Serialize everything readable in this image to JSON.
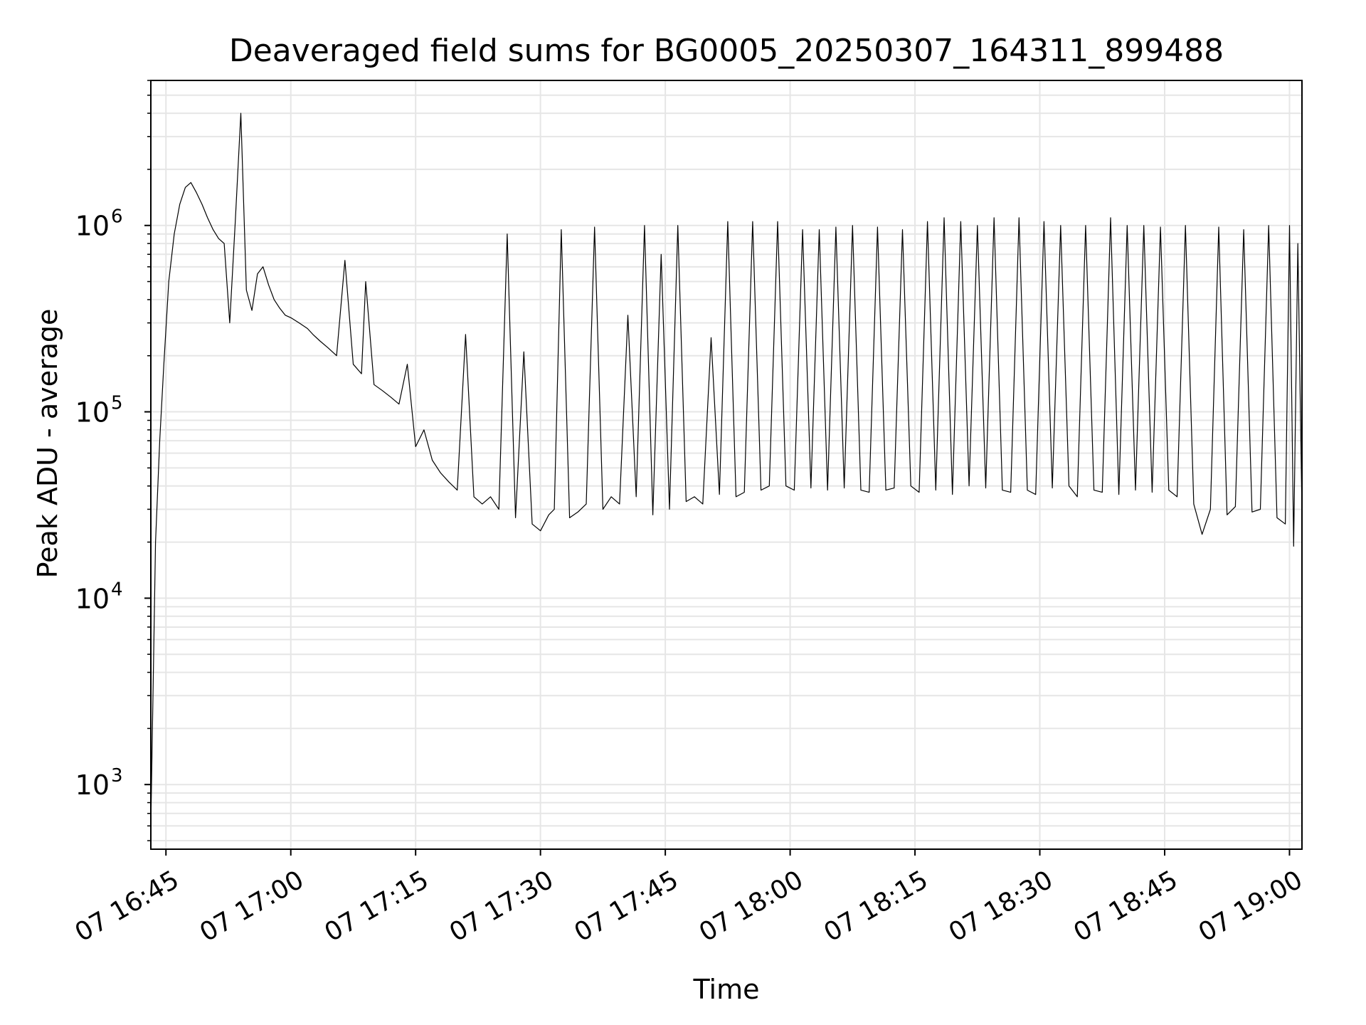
{
  "chart_data": {
    "type": "line",
    "title": "Deaveraged field sums for BG0005_20250307_164311_899488",
    "xlabel": "Time",
    "ylabel": "Peak ADU - average",
    "yscale": "log",
    "ylim": [
      450,
      6000000
    ],
    "xlim": [
      "2025-03-07 16:43:11",
      "2025-03-07 19:01:30"
    ],
    "grid": true,
    "line_color": "#000000",
    "grid_color": "#e6e6e6",
    "x_ticks": [
      {
        "t": "2025-03-07 16:45",
        "label": "07 16:45"
      },
      {
        "t": "2025-03-07 17:00",
        "label": "07 17:00"
      },
      {
        "t": "2025-03-07 17:15",
        "label": "07 17:15"
      },
      {
        "t": "2025-03-07 17:30",
        "label": "07 17:30"
      },
      {
        "t": "2025-03-07 17:45",
        "label": "07 17:45"
      },
      {
        "t": "2025-03-07 18:00",
        "label": "07 18:00"
      },
      {
        "t": "2025-03-07 18:15",
        "label": "07 18:15"
      },
      {
        "t": "2025-03-07 18:30",
        "label": "07 18:30"
      },
      {
        "t": "2025-03-07 18:45",
        "label": "07 18:45"
      },
      {
        "t": "2025-03-07 19:00",
        "label": "07 19:00"
      }
    ],
    "y_ticks": [
      {
        "value": 1000,
        "exp": "3"
      },
      {
        "value": 10000,
        "exp": "4"
      },
      {
        "value": 100000,
        "exp": "5"
      },
      {
        "value": 1000000,
        "exp": "6"
      }
    ],
    "y_tick_base": "10",
    "series": [
      {
        "x": [
          "2025-03-07 16:43:11",
          "2025-03-07 16:43:45",
          "2025-03-07 16:44:15",
          "2025-03-07 16:44:45",
          "2025-03-07 16:45:20",
          "2025-03-07 16:46:00",
          "2025-03-07 16:46:40",
          "2025-03-07 16:47:20",
          "2025-03-07 16:48:00",
          "2025-03-07 16:48:40",
          "2025-03-07 16:49:20",
          "2025-03-07 16:50:00",
          "2025-03-07 16:50:40",
          "2025-03-07 16:51:20",
          "2025-03-07 16:52:00",
          "2025-03-07 16:52:40",
          "2025-03-07 16:53:20",
          "2025-03-07 16:54:00",
          "2025-03-07 16:54:40",
          "2025-03-07 16:55:20",
          "2025-03-07 16:56:00",
          "2025-03-07 16:56:40",
          "2025-03-07 16:57:20",
          "2025-03-07 16:58:00",
          "2025-03-07 16:58:40",
          "2025-03-07 16:59:20",
          "2025-03-07 17:00:00",
          "2025-03-07 17:01:00",
          "2025-03-07 17:02:00",
          "2025-03-07 17:02:40",
          "2025-03-07 17:03:30",
          "2025-03-07 17:04:30",
          "2025-03-07 17:05:30",
          "2025-03-07 17:06:30",
          "2025-03-07 17:07:30",
          "2025-03-07 17:08:30",
          "2025-03-07 17:09:00",
          "2025-03-07 17:10:00",
          "2025-03-07 17:11:00",
          "2025-03-07 17:12:00",
          "2025-03-07 17:13:00",
          "2025-03-07 17:14:00",
          "2025-03-07 17:15:00",
          "2025-03-07 17:16:00",
          "2025-03-07 17:17:00",
          "2025-03-07 17:18:00",
          "2025-03-07 17:19:00",
          "2025-03-07 17:20:00",
          "2025-03-07 17:21:00",
          "2025-03-07 17:22:00",
          "2025-03-07 17:23:00",
          "2025-03-07 17:24:00",
          "2025-03-07 17:25:00",
          "2025-03-07 17:26:00",
          "2025-03-07 17:27:00",
          "2025-03-07 17:28:00",
          "2025-03-07 17:29:00",
          "2025-03-07 17:30:00",
          "2025-03-07 17:31:00",
          "2025-03-07 17:31:40",
          "2025-03-07 17:32:30",
          "2025-03-07 17:33:30",
          "2025-03-07 17:34:30",
          "2025-03-07 17:35:30",
          "2025-03-07 17:36:30",
          "2025-03-07 17:37:30",
          "2025-03-07 17:38:30",
          "2025-03-07 17:39:30",
          "2025-03-07 17:40:30",
          "2025-03-07 17:41:30",
          "2025-03-07 17:42:30",
          "2025-03-07 17:43:30",
          "2025-03-07 17:44:30",
          "2025-03-07 17:45:30",
          "2025-03-07 17:46:30",
          "2025-03-07 17:47:30",
          "2025-03-07 17:48:30",
          "2025-03-07 17:49:30",
          "2025-03-07 17:50:30",
          "2025-03-07 17:51:30",
          "2025-03-07 17:52:30",
          "2025-03-07 17:53:30",
          "2025-03-07 17:54:30",
          "2025-03-07 17:55:30",
          "2025-03-07 17:56:30",
          "2025-03-07 17:57:30",
          "2025-03-07 17:58:30",
          "2025-03-07 17:59:30",
          "2025-03-07 18:00:30",
          "2025-03-07 18:01:30",
          "2025-03-07 18:02:30",
          "2025-03-07 18:03:30",
          "2025-03-07 18:04:30",
          "2025-03-07 18:05:30",
          "2025-03-07 18:06:30",
          "2025-03-07 18:07:30",
          "2025-03-07 18:08:30",
          "2025-03-07 18:09:30",
          "2025-03-07 18:10:30",
          "2025-03-07 18:11:30",
          "2025-03-07 18:12:30",
          "2025-03-07 18:13:30",
          "2025-03-07 18:14:30",
          "2025-03-07 18:15:30",
          "2025-03-07 18:16:30",
          "2025-03-07 18:17:30",
          "2025-03-07 18:18:30",
          "2025-03-07 18:19:30",
          "2025-03-07 18:20:30",
          "2025-03-07 18:21:30",
          "2025-03-07 18:22:30",
          "2025-03-07 18:23:30",
          "2025-03-07 18:24:30",
          "2025-03-07 18:25:30",
          "2025-03-07 18:26:30",
          "2025-03-07 18:27:30",
          "2025-03-07 18:28:30",
          "2025-03-07 18:29:30",
          "2025-03-07 18:30:30",
          "2025-03-07 18:31:30",
          "2025-03-07 18:32:30",
          "2025-03-07 18:33:30",
          "2025-03-07 18:34:30",
          "2025-03-07 18:35:30",
          "2025-03-07 18:36:30",
          "2025-03-07 18:37:30",
          "2025-03-07 18:38:30",
          "2025-03-07 18:39:30",
          "2025-03-07 18:40:30",
          "2025-03-07 18:41:30",
          "2025-03-07 18:42:30",
          "2025-03-07 18:43:30",
          "2025-03-07 18:44:30",
          "2025-03-07 18:45:30",
          "2025-03-07 18:46:30",
          "2025-03-07 18:47:30",
          "2025-03-07 18:48:30",
          "2025-03-07 18:49:30",
          "2025-03-07 18:50:30",
          "2025-03-07 18:51:30",
          "2025-03-07 18:52:30",
          "2025-03-07 18:53:30",
          "2025-03-07 18:54:30",
          "2025-03-07 18:55:30",
          "2025-03-07 18:56:30",
          "2025-03-07 18:57:30",
          "2025-03-07 18:58:30",
          "2025-03-07 18:59:30",
          "2025-03-07 19:00:00",
          "2025-03-07 19:00:30",
          "2025-03-07 19:01:00",
          "2025-03-07 19:01:30"
        ],
        "y": [
          600,
          20000,
          70000,
          180000,
          500000,
          900000,
          1300000,
          1600000,
          1700000,
          1500000,
          1300000,
          1100000,
          950000,
          850000,
          800000,
          300000,
          1050000,
          4000000,
          450000,
          350000,
          550000,
          600000,
          480000,
          400000,
          360000,
          330000,
          320000,
          300000,
          280000,
          260000,
          240000,
          220000,
          200000,
          650000,
          180000,
          160000,
          500000,
          140000,
          130000,
          120000,
          110000,
          180000,
          65000,
          80000,
          55000,
          47000,
          42000,
          38000,
          260000,
          35000,
          32000,
          35000,
          30000,
          900000,
          27000,
          210000,
          25000,
          23000,
          28000,
          30000,
          950000,
          27000,
          29000,
          32000,
          980000,
          30000,
          35000,
          32000,
          330000,
          35000,
          1000000,
          28000,
          700000,
          30000,
          1000000,
          33000,
          35000,
          32000,
          250000,
          36000,
          1050000,
          35000,
          37000,
          1050000,
          38000,
          40000,
          1050000,
          40000,
          38000,
          950000,
          39000,
          950000,
          38000,
          980000,
          39000,
          1000000,
          38000,
          37000,
          980000,
          38000,
          39000,
          950000,
          40000,
          37000,
          1050000,
          38000,
          1100000,
          36000,
          1050000,
          40000,
          1000000,
          39000,
          1100000,
          38000,
          37000,
          1100000,
          38000,
          36000,
          1050000,
          39000,
          1000000,
          40000,
          35000,
          1000000,
          38000,
          37000,
          1100000,
          36000,
          1000000,
          38000,
          1000000,
          37000,
          980000,
          38000,
          35000,
          1000000,
          32000,
          22000,
          30000,
          980000,
          28000,
          31000,
          950000,
          29000,
          30000,
          1000000,
          27000,
          25000,
          1000000,
          19000,
          800000,
          29000
        ]
      }
    ]
  }
}
